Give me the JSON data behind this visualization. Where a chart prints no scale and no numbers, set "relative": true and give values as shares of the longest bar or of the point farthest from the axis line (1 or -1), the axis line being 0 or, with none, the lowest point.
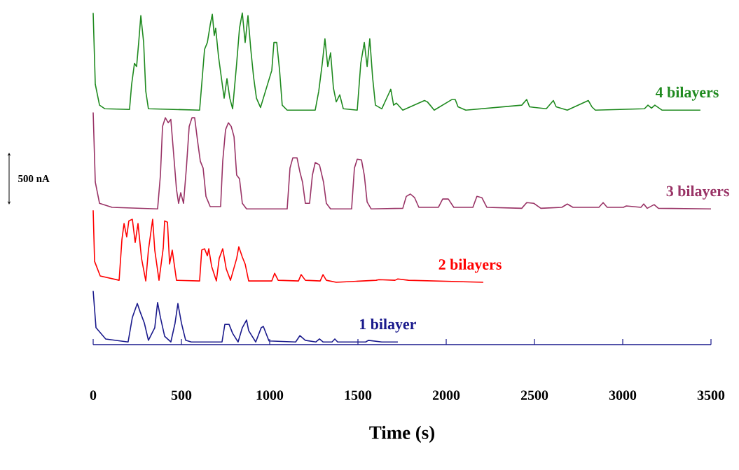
{
  "chart_data": {
    "type": "line",
    "relative": true,
    "xlabel": "Time (s)",
    "xlim": [
      0,
      3500
    ],
    "xticks": [
      0,
      500,
      1000,
      1500,
      2000,
      2500,
      3000,
      3500
    ],
    "annotations": [
      "500 nA"
    ],
    "series": [
      {
        "name": "4 bilayers",
        "color": "#1f8a1f",
        "x": [
          0,
          12,
          36,
          67,
          206,
          218,
          234,
          246,
          258,
          270,
          286,
          298,
          313,
          603,
          615,
          631,
          647,
          663,
          675,
          686,
          694,
          710,
          726,
          742,
          758,
          774,
          790,
          813,
          829,
          845,
          861,
          877,
          893,
          909,
          925,
          948,
          1012,
          1024,
          1040,
          1056,
          1071,
          1099,
          1258,
          1278,
          1298,
          1313,
          1329,
          1345,
          1361,
          1377,
          1397,
          1417,
          1496,
          1516,
          1536,
          1552,
          1567,
          1583,
          1599,
          1635,
          1675,
          1686,
          1702,
          1718,
          1754,
          1877,
          1893,
          1909,
          1932,
          2032,
          2051,
          2067,
          2111,
          2428,
          2456,
          2472,
          2567,
          2607,
          2623,
          2686,
          2805,
          2825,
          2845,
          3123,
          3143,
          3163,
          3182,
          3222,
          3440
        ],
        "values": [
          1.0,
          0.785,
          0.722,
          0.711,
          0.709,
          0.785,
          0.848,
          0.838,
          0.911,
          0.992,
          0.911,
          0.764,
          0.711,
          0.707,
          0.785,
          0.89,
          0.911,
          0.964,
          0.996,
          0.932,
          0.954,
          0.869,
          0.806,
          0.743,
          0.802,
          0.743,
          0.711,
          0.848,
          0.954,
          1.0,
          0.911,
          0.992,
          0.89,
          0.806,
          0.743,
          0.715,
          0.827,
          0.911,
          0.911,
          0.827,
          0.722,
          0.707,
          0.707,
          0.764,
          0.848,
          0.922,
          0.838,
          0.88,
          0.774,
          0.732,
          0.753,
          0.711,
          0.707,
          0.848,
          0.911,
          0.838,
          0.922,
          0.806,
          0.722,
          0.711,
          0.757,
          0.77,
          0.722,
          0.728,
          0.707,
          0.736,
          0.732,
          0.722,
          0.707,
          0.739,
          0.739,
          0.717,
          0.707,
          0.722,
          0.739,
          0.717,
          0.711,
          0.736,
          0.717,
          0.707,
          0.736,
          0.717,
          0.707,
          0.711,
          0.722,
          0.713,
          0.722,
          0.707,
          0.707
        ]
      },
      {
        "name": "3 bilayers",
        "color": "#993366",
        "x": [
          0,
          12,
          36,
          107,
          365,
          381,
          393,
          409,
          425,
          440,
          456,
          472,
          484,
          496,
          512,
          528,
          544,
          560,
          575,
          591,
          607,
          623,
          639,
          663,
          722,
          734,
          750,
          766,
          782,
          798,
          813,
          829,
          845,
          869,
          1099,
          1115,
          1131,
          1155,
          1171,
          1186,
          1202,
          1226,
          1242,
          1258,
          1282,
          1305,
          1321,
          1345,
          1464,
          1480,
          1496,
          1520,
          1536,
          1552,
          1575,
          1754,
          1774,
          1797,
          1821,
          1845,
          1956,
          1980,
          2012,
          2043,
          2151,
          2174,
          2202,
          2230,
          2428,
          2456,
          2496,
          2536,
          2655,
          2686,
          2718,
          2865,
          2889,
          2912,
          3004,
          3020,
          3103,
          3119,
          3139,
          3178,
          3202,
          3500
        ],
        "values": [
          0.7,
          0.49,
          0.426,
          0.414,
          0.409,
          0.511,
          0.658,
          0.684,
          0.669,
          0.679,
          0.574,
          0.468,
          0.426,
          0.458,
          0.426,
          0.532,
          0.658,
          0.684,
          0.684,
          0.616,
          0.553,
          0.532,
          0.447,
          0.416,
          0.416,
          0.553,
          0.648,
          0.669,
          0.658,
          0.627,
          0.511,
          0.5,
          0.426,
          0.409,
          0.409,
          0.532,
          0.563,
          0.563,
          0.521,
          0.49,
          0.426,
          0.426,
          0.511,
          0.549,
          0.542,
          0.49,
          0.426,
          0.409,
          0.409,
          0.532,
          0.559,
          0.557,
          0.511,
          0.43,
          0.409,
          0.411,
          0.447,
          0.454,
          0.443,
          0.414,
          0.414,
          0.439,
          0.439,
          0.414,
          0.414,
          0.447,
          0.443,
          0.414,
          0.411,
          0.428,
          0.426,
          0.411,
          0.414,
          0.424,
          0.414,
          0.414,
          0.428,
          0.414,
          0.414,
          0.418,
          0.414,
          0.424,
          0.411,
          0.422,
          0.411,
          0.409
        ]
      },
      {
        "name": "2 bilayers",
        "color": "#ff0000",
        "x": [
          0,
          8,
          40,
          147,
          163,
          175,
          190,
          202,
          222,
          238,
          254,
          274,
          298,
          313,
          337,
          349,
          373,
          397,
          405,
          421,
          433,
          448,
          472,
          603,
          615,
          631,
          647,
          655,
          671,
          698,
          714,
          734,
          754,
          778,
          813,
          825,
          845,
          861,
          881,
          1012,
          1028,
          1048,
          1163,
          1178,
          1202,
          1286,
          1302,
          1321,
          1377,
          1603,
          1619,
          1710,
          1726,
          1786,
          2210
        ],
        "values": [
          0.405,
          0.251,
          0.207,
          0.194,
          0.317,
          0.365,
          0.325,
          0.373,
          0.378,
          0.308,
          0.365,
          0.26,
          0.192,
          0.285,
          0.378,
          0.285,
          0.194,
          0.291,
          0.373,
          0.369,
          0.243,
          0.285,
          0.194,
          0.192,
          0.285,
          0.289,
          0.268,
          0.289,
          0.236,
          0.192,
          0.26,
          0.289,
          0.228,
          0.194,
          0.26,
          0.295,
          0.264,
          0.243,
          0.192,
          0.192,
          0.215,
          0.194,
          0.192,
          0.211,
          0.194,
          0.192,
          0.211,
          0.194,
          0.188,
          0.194,
          0.196,
          0.194,
          0.198,
          0.194,
          0.188
        ]
      },
      {
        "name": "1 bilayer",
        "color": "#1a1a8c",
        "x": [
          0,
          16,
          71,
          198,
          222,
          250,
          266,
          290,
          313,
          349,
          365,
          381,
          405,
          440,
          464,
          480,
          500,
          524,
          556,
          730,
          746,
          770,
          790,
          821,
          845,
          869,
          881,
          921,
          952,
          964,
          996,
          1147,
          1171,
          1202,
          1262,
          1282,
          1302,
          1353,
          1369,
          1385,
          1544,
          1559,
          1635,
          1726
        ],
        "values": [
          0.162,
          0.051,
          0.017,
          0.008,
          0.082,
          0.124,
          0.099,
          0.065,
          0.013,
          0.051,
          0.127,
          0.082,
          0.025,
          0.008,
          0.065,
          0.124,
          0.065,
          0.013,
          0.008,
          0.008,
          0.061,
          0.061,
          0.034,
          0.008,
          0.051,
          0.074,
          0.042,
          0.008,
          0.051,
          0.055,
          0.011,
          0.008,
          0.027,
          0.013,
          0.008,
          0.017,
          0.008,
          0.008,
          0.017,
          0.008,
          0.008,
          0.013,
          0.008,
          0.008
        ]
      }
    ]
  }
}
